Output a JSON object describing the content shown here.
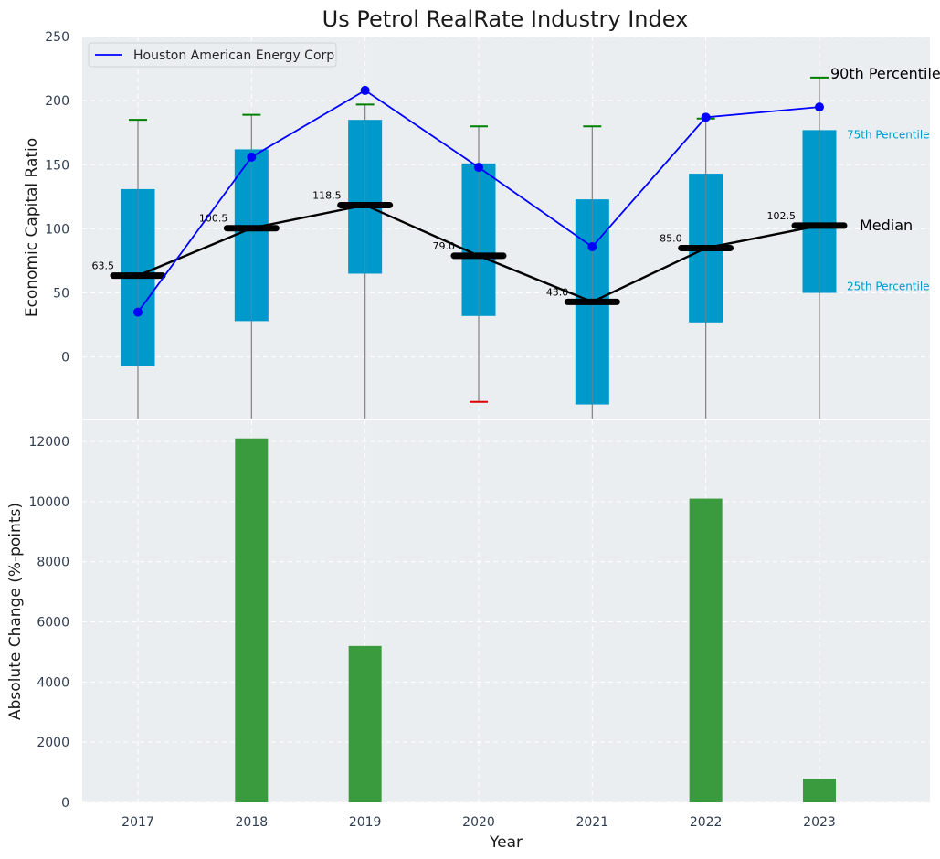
{
  "colors": {
    "panel_bg": "#eaeef0",
    "grid": "#ffffff",
    "box": "#0099cc",
    "whisker": "#808080",
    "upper_cap": "#008000",
    "lower_cap": "#dd0000",
    "median": "#000000",
    "company_line": "#0000ff",
    "bars": "#3a9b3e",
    "pct_label": "#0099cc"
  },
  "chart_data": [
    {
      "type": "box",
      "title": "Us Petrol RealRate Industry Index",
      "ylabel": "Economic Capital Ratio",
      "ylim": [
        -48,
        250
      ],
      "yticks": [
        0,
        50,
        100,
        150,
        200,
        250
      ],
      "categories": [
        "2017",
        "2018",
        "2019",
        "2020",
        "2021",
        "2022",
        "2023"
      ],
      "boxes": [
        {
          "year": "2017",
          "q1": -7,
          "median": 63.5,
          "q3": 131,
          "upper": 185,
          "lower": null
        },
        {
          "year": "2018",
          "q1": 28,
          "median": 100.5,
          "q3": 162,
          "upper": 189,
          "lower": null
        },
        {
          "year": "2019",
          "q1": 65,
          "median": 118.5,
          "q3": 185,
          "upper": 197,
          "lower": null
        },
        {
          "year": "2020",
          "q1": 32,
          "median": 79.0,
          "q3": 151,
          "upper": 180,
          "lower": -35
        },
        {
          "year": "2021",
          "q1": -37,
          "median": 43.0,
          "q3": 123,
          "upper": 180,
          "lower": null
        },
        {
          "year": "2022",
          "q1": 27,
          "median": 85.0,
          "q3": 143,
          "upper": 186,
          "lower": null
        },
        {
          "year": "2023",
          "q1": 50,
          "median": 102.5,
          "q3": 177,
          "upper": 218,
          "lower": null
        }
      ],
      "median_labels": [
        "63.5",
        "100.5",
        "118.5",
        "79.0",
        "43.0",
        "85.0",
        "102.5"
      ],
      "series": [
        {
          "name": "Houston American Energy Corp",
          "values": [
            35,
            156,
            208,
            148,
            86,
            187,
            195
          ]
        }
      ],
      "legend": {
        "position": "top-left",
        "entries": [
          "Houston American Energy Corp"
        ]
      },
      "annotations": {
        "p90": "90th Percentile",
        "p75": "75th Percentile",
        "median": "Median",
        "p25": "25th Percentile"
      },
      "grid": true
    },
    {
      "type": "bar",
      "xlabel": "Year",
      "ylabel": "Absolute Change (%-points)",
      "ylim": [
        0,
        12700
      ],
      "yticks": [
        0,
        2000,
        4000,
        6000,
        8000,
        10000,
        12000
      ],
      "categories": [
        "2017",
        "2018",
        "2019",
        "2020",
        "2021",
        "2022",
        "2023"
      ],
      "values": [
        0,
        12100,
        5200,
        0,
        0,
        10100,
        780
      ],
      "grid": true
    }
  ]
}
